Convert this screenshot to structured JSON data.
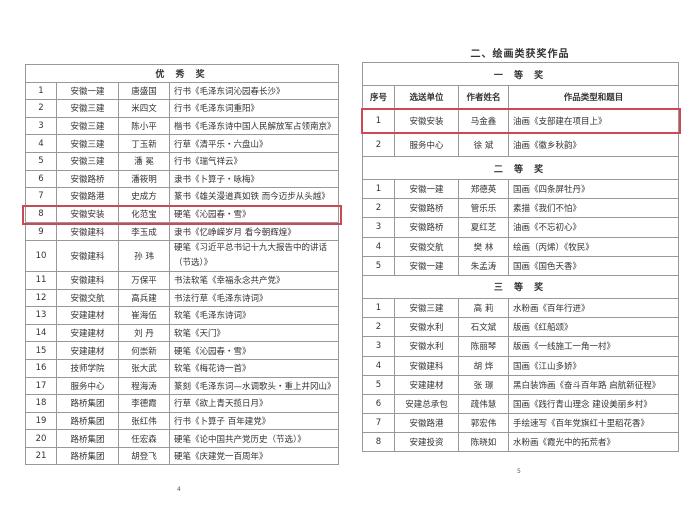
{
  "left_page": {
    "section": "优 秀 奖",
    "rows": [
      [
        "1",
        "安徽一建",
        "唐盛国",
        "行书《毛泽东词沁园春长沙》"
      ],
      [
        "2",
        "安徽三建",
        "米四文",
        "行书《毛泽东词重阳》"
      ],
      [
        "3",
        "安徽三建",
        "陈小平",
        "楷书《毛泽东诗中国人民解放军占领南京》"
      ],
      [
        "4",
        "安徽三建",
        "丁玉新",
        "行草《清平乐・六盘山》"
      ],
      [
        "5",
        "安徽三建",
        "潘  冕",
        "行书《瑞气祥云》"
      ],
      [
        "6",
        "安徽路桥",
        "潘筱明",
        "隶书《卜算子・咏梅》"
      ],
      [
        "7",
        "安徽路港",
        "史成方",
        "篆书《雄关漫道真如铁 而今迈步从头越》"
      ],
      [
        "8",
        "安徽安装",
        "化范宝",
        "硬笔《沁园春・雪》"
      ],
      [
        "9",
        "安徽建科",
        "李玉成",
        "隶书《忆峥嵘岁月 看今朝辉煌》"
      ],
      [
        "10",
        "安徽建科",
        "孙  玮",
        "硬笔《习近平总书记十九大报告中的讲话（节选）》"
      ],
      [
        "11",
        "安徽建科",
        "万保平",
        "书法软笔《幸福永念共产党》"
      ],
      [
        "12",
        "安徽交航",
        "高兵建",
        "书法行草《毛泽东诗词》"
      ],
      [
        "13",
        "安建建材",
        "崔海伍",
        "软笔《毛泽东诗词》"
      ],
      [
        "14",
        "安建建材",
        "刘  丹",
        "软笔《天门》"
      ],
      [
        "15",
        "安建建材",
        "何崇新",
        "硬笔《沁园春・雪》"
      ],
      [
        "16",
        "技师学院",
        "张大武",
        "软笔《梅花诗一首》"
      ],
      [
        "17",
        "服务中心",
        "程海涛",
        "篆刻《毛泽东词—水调歌头・重上井冈山》"
      ],
      [
        "18",
        "路桥集团",
        "李德霞",
        "行草《欲上青天揽日月》"
      ],
      [
        "19",
        "路桥集团",
        "张红伟",
        "行书《卜算子 百年建党》"
      ],
      [
        "20",
        "路桥集团",
        "任宏森",
        "硬笔《论中国共产党历史（节选）》"
      ],
      [
        "21",
        "路桥集团",
        "胡登飞",
        "硬笔《庆建党一百周年》"
      ]
    ],
    "page_number": "4"
  },
  "right_page": {
    "title": "二、绘画类获奖作品",
    "headers": [
      "序号",
      "选送单位",
      "作者姓名",
      "作品类型和题目"
    ],
    "sections": [
      {
        "name": "一 等 奖",
        "rows": [
          [
            "1",
            "安徽安装",
            "马金鑫",
            "油画《支部建在项目上》"
          ],
          [
            "2",
            "服务中心",
            "徐  斌",
            "油画《徽乡秋韵》"
          ]
        ]
      },
      {
        "name": "二 等 奖",
        "rows": [
          [
            "1",
            "安徽一建",
            "郑德英",
            "国画《四条屏牡丹》"
          ],
          [
            "2",
            "安徽路桥",
            "管乐乐",
            "素描《我们不怕》"
          ],
          [
            "3",
            "安徽路桥",
            "夏红芝",
            "油画《不忘初心》"
          ],
          [
            "4",
            "安徽交航",
            "樊  林",
            "绘画（丙烯）《牧民》"
          ],
          [
            "5",
            "安徽一建",
            "朱孟涛",
            "国画《国色天香》"
          ]
        ]
      },
      {
        "name": "三 等 奖",
        "rows": [
          [
            "1",
            "安徽三建",
            "高  莉",
            "水粉画《百年行进》"
          ],
          [
            "2",
            "安徽水利",
            "石文斌",
            "版画《红船颂》"
          ],
          [
            "3",
            "安徽水利",
            "陈丽琴",
            "版画《一线施工一角一村》"
          ],
          [
            "4",
            "安徽建科",
            "胡  烨",
            "国画《江山多娇》"
          ],
          [
            "5",
            "安建建材",
            "张  璟",
            "黑白装饰画《奋斗百年路 启航新征程》"
          ],
          [
            "6",
            "安建总承包",
            "疏伟慧",
            "国画《践行青山理念 建设美丽乡村》"
          ],
          [
            "7",
            "安徽路港",
            "郭宏伟",
            "手绘速写《百年党旗红十里稻花香》"
          ],
          [
            "8",
            "安建投资",
            "陈晓如",
            "水粉画《霞光中的拓荒者》"
          ]
        ]
      }
    ],
    "page_number": "5"
  },
  "highlight_color": "#c94a55"
}
